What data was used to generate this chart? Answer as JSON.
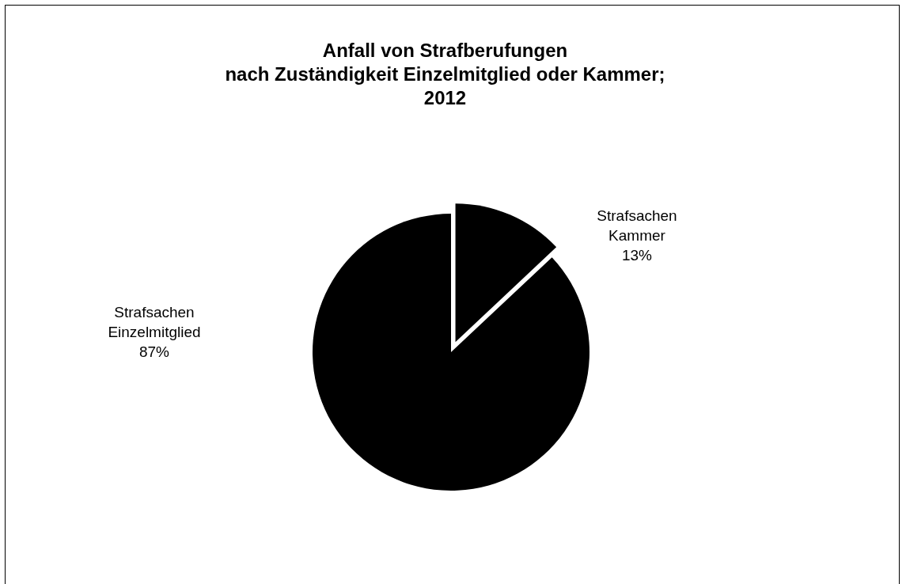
{
  "chart_data": {
    "type": "pie",
    "title": "Anfall von Strafberufungen\nnach Zuständigkeit Einzelmitglied oder Kammer;\n2012",
    "categories": [
      "Strafsachen Kammer",
      "Strafsachen Einzelmitglied"
    ],
    "values": [
      13,
      87
    ],
    "colors": [
      "#000000",
      "#000000"
    ],
    "value_labels": [
      "13%",
      "87%"
    ],
    "legend": false
  }
}
